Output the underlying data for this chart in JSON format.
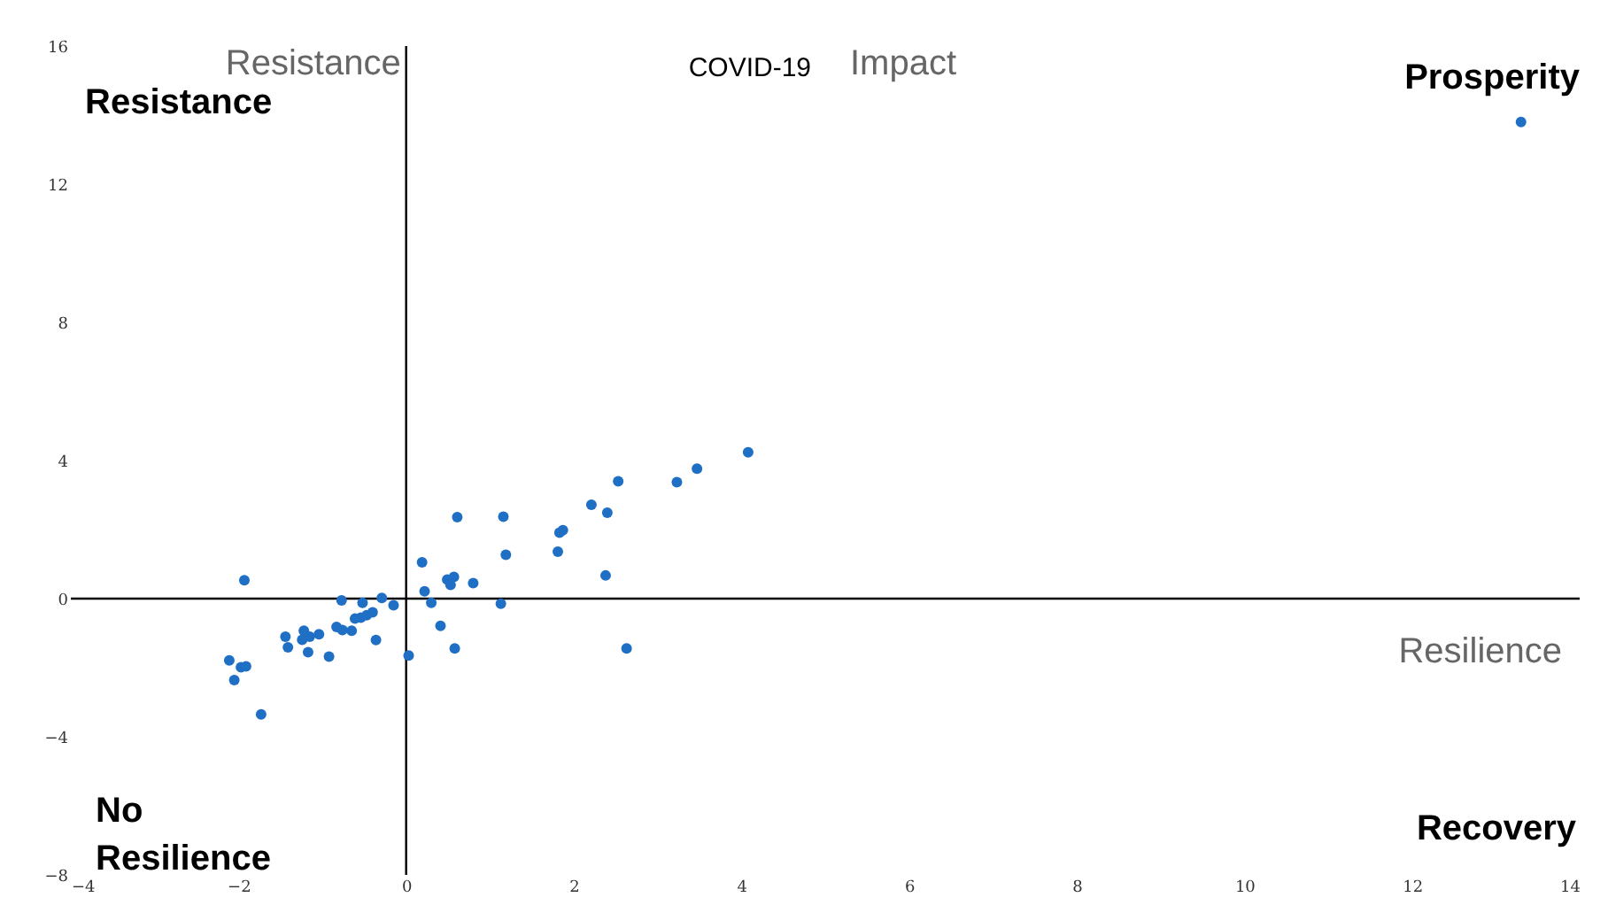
{
  "chart_data": {
    "type": "scatter",
    "title": "COVID-19",
    "subtitle": "Impact",
    "xlabel": "Resilience",
    "ylabel": "Resistance",
    "annotations": [
      "Resistance",
      "Prosperity",
      "No Resilience",
      "Recovery"
    ],
    "x": [
      4.08,
      3.47,
      3.23,
      2.53,
      2.21,
      2.4,
      1.87,
      1.83,
      1.81,
      2.38,
      2.63,
      1.16,
      1.19,
      1.13,
      0.61,
      0.19,
      0.49,
      0.57,
      0.53,
      0.8,
      0.22,
      0.3,
      0.41,
      0.58,
      0.03,
      -0.15,
      -0.29,
      -0.52,
      -0.77,
      -0.4,
      -0.47,
      -0.54,
      -0.61,
      -0.83,
      -0.76,
      -0.65,
      -0.36,
      -1.04,
      -1.22,
      -1.24,
      -1.15,
      -1.44,
      -1.41,
      -1.17,
      -0.92,
      -1.93,
      -2.11,
      -1.97,
      -1.91,
      -2.05,
      -1.73,
      13.3
    ],
    "series": [
      {
        "color": "#1f6fc5",
        "values": [
          4.24,
          3.76,
          3.37,
          3.4,
          2.72,
          2.49,
          1.98,
          1.91,
          1.36,
          0.67,
          -1.44,
          2.37,
          1.27,
          -0.15,
          2.36,
          1.05,
          0.55,
          0.63,
          0.4,
          0.45,
          0.21,
          -0.12,
          -0.79,
          -1.44,
          -1.65,
          -0.19,
          0.02,
          -0.12,
          -0.05,
          -0.4,
          -0.48,
          -0.55,
          -0.58,
          -0.82,
          -0.91,
          -0.93,
          -1.2,
          -1.03,
          -0.93,
          -1.19,
          -1.1,
          -1.1,
          -1.41,
          -1.55,
          -1.68,
          0.53,
          -1.79,
          -1.99,
          -1.96,
          -2.36,
          -3.35,
          13.8
        ]
      }
    ],
    "xlim": [
      -4,
      14
    ],
    "xticks": [
      -4,
      -2,
      0,
      2,
      4,
      6,
      8,
      10,
      12,
      14
    ],
    "ylim": [
      -8,
      16
    ],
    "yticks": [
      -8,
      -4,
      0,
      4,
      8,
      12,
      16
    ],
    "marker": "circle"
  }
}
